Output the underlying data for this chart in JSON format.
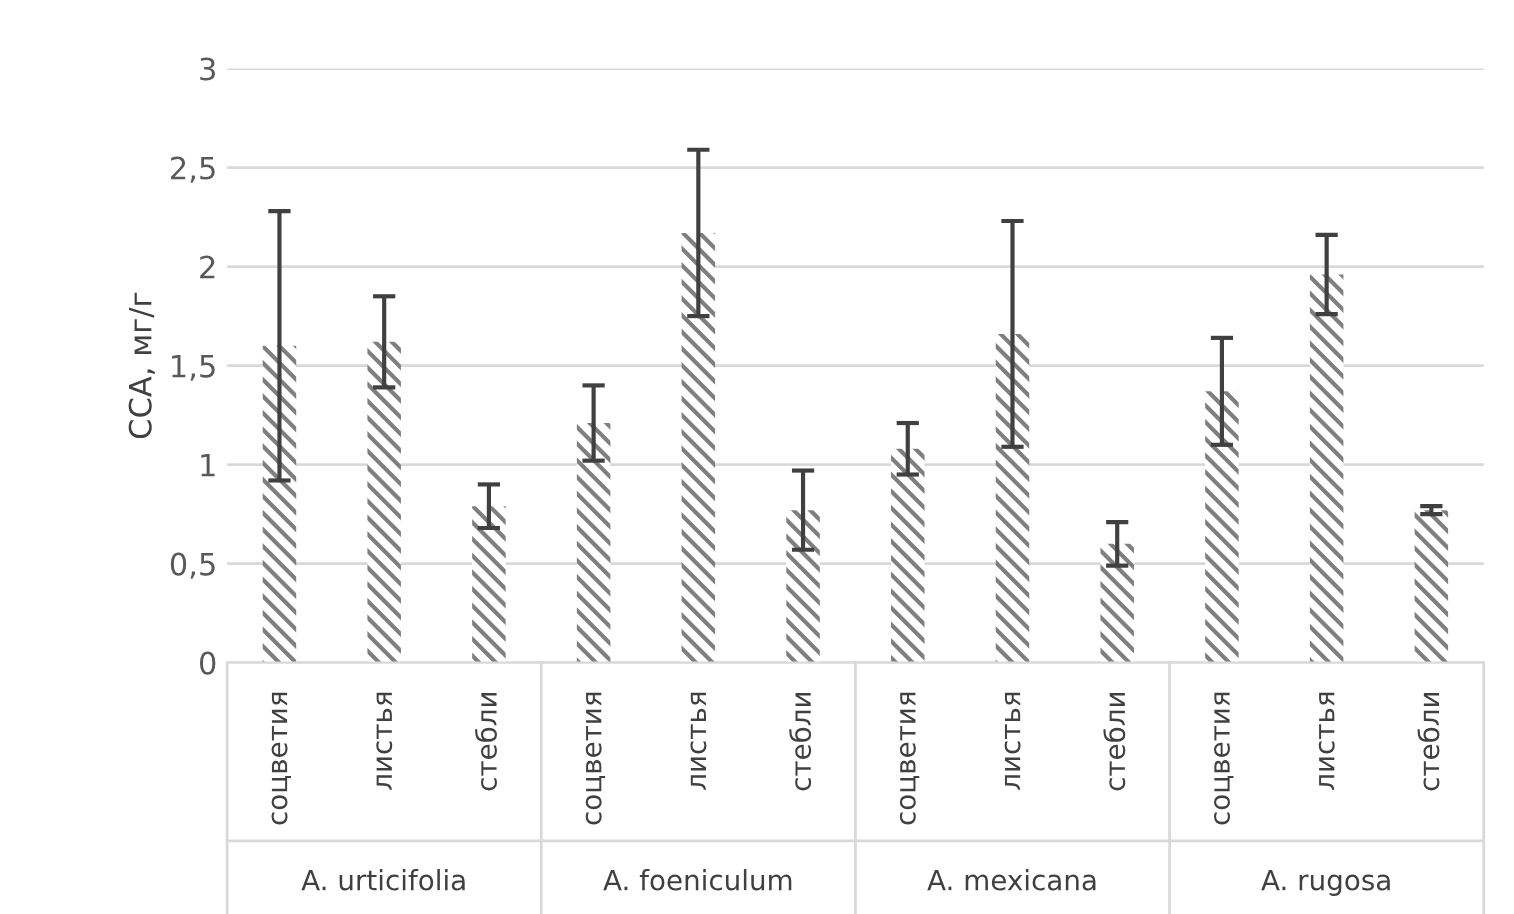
{
  "chart_data": {
    "type": "bar",
    "ylabel": "ССА, мг/г",
    "categories": [
      "соцветия",
      "листья",
      "стебли",
      "соцветия",
      "листья",
      "стебли",
      "соцветия",
      "листья",
      "стебли",
      "соцветия",
      "листья",
      "стебли"
    ],
    "values": [
      1.6,
      1.62,
      0.79,
      1.21,
      2.17,
      0.77,
      1.08,
      1.66,
      0.6,
      1.37,
      1.96,
      0.77
    ],
    "errors": [
      0.68,
      0.23,
      0.11,
      0.19,
      0.42,
      0.2,
      0.13,
      0.57,
      0.11,
      0.27,
      0.2,
      0.02
    ],
    "color": "#7f7f7f",
    "annotations": [
      "A. urticifolia",
      "A. foeniculum",
      "A. mexicana",
      "A. rugosa"
    ],
    "ylim": [
      0,
      3
    ],
    "yticks": [
      0,
      {
        "value": 0.5,
        "label": "0,5"
      },
      1,
      {
        "value": 1.5,
        "label": "1,5"
      },
      2,
      {
        "value": 2.5,
        "label": "2,5"
      },
      3
    ],
    "grid": "y"
  }
}
